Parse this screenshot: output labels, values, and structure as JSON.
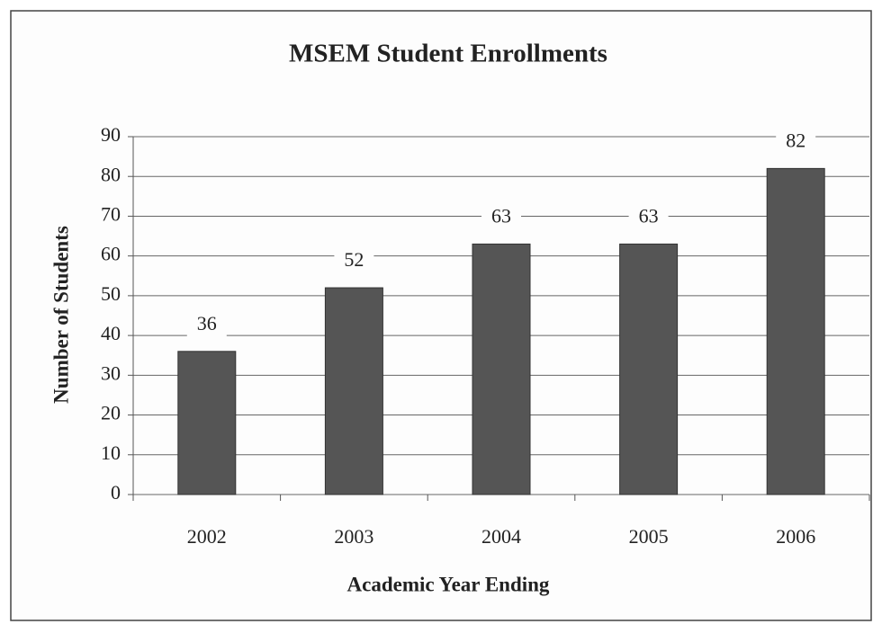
{
  "chart_data": {
    "type": "bar",
    "title": "MSEM Student Enrollments",
    "x_label": "Academic Year Ending",
    "y_label": "Number of Students",
    "categories": [
      "2002",
      "2003",
      "2004",
      "2005",
      "2006"
    ],
    "values": [
      36,
      52,
      63,
      63,
      82
    ],
    "color": "#555555",
    "ylim": [
      0,
      90
    ],
    "yticks": [
      0,
      10,
      20,
      30,
      40,
      50,
      60,
      70,
      80,
      90
    ],
    "grid": true
  }
}
